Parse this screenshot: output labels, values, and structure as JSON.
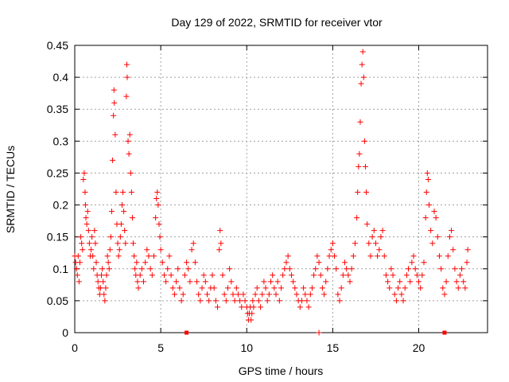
{
  "chart_data": {
    "type": "scatter",
    "title": "Day 129 of 2022, SRMTID for receiver vtor",
    "xlabel": "GPS time / hours",
    "ylabel": "SRMTID / TECUs",
    "xlim": [
      0,
      24
    ],
    "ylim": [
      0,
      0.45
    ],
    "x_ticks": [
      0,
      5,
      10,
      15,
      20
    ],
    "x_tick_labels": [
      "0",
      "5",
      "10",
      "15",
      "20"
    ],
    "y_ticks": [
      0,
      0.05,
      0.1,
      0.15,
      0.2,
      0.25,
      0.3,
      0.35,
      0.4,
      0.45
    ],
    "y_tick_labels": [
      "0",
      "0.05",
      "0.1",
      "0.15",
      "0.2",
      "0.25",
      "0.3",
      "0.35",
      "0.4",
      "0.45"
    ],
    "grid": true,
    "color": "#ff0000",
    "marker": "plus",
    "series": [
      {
        "name": "SRMTID",
        "points": [
          [
            0.0,
            0.12
          ],
          [
            0.05,
            0.11
          ],
          [
            0.1,
            0.1
          ],
          [
            0.15,
            0.09
          ],
          [
            0.2,
            0.12
          ],
          [
            0.25,
            0.08
          ],
          [
            0.3,
            0.11
          ],
          [
            0.35,
            0.15
          ],
          [
            0.4,
            0.14
          ],
          [
            0.45,
            0.13
          ],
          [
            0.5,
            0.24
          ],
          [
            0.55,
            0.25
          ],
          [
            0.6,
            0.22
          ],
          [
            0.62,
            0.2
          ],
          [
            0.65,
            0.18
          ],
          [
            0.7,
            0.17
          ],
          [
            0.75,
            0.19
          ],
          [
            0.8,
            0.16
          ],
          [
            0.85,
            0.14
          ],
          [
            0.9,
            0.12
          ],
          [
            0.95,
            0.13
          ],
          [
            1.0,
            0.15
          ],
          [
            1.05,
            0.12
          ],
          [
            1.1,
            0.1
          ],
          [
            1.15,
            0.16
          ],
          [
            1.2,
            0.14
          ],
          [
            1.25,
            0.11
          ],
          [
            1.3,
            0.09
          ],
          [
            1.35,
            0.08
          ],
          [
            1.4,
            0.07
          ],
          [
            1.45,
            0.06
          ],
          [
            1.5,
            0.07
          ],
          [
            1.55,
            0.09
          ],
          [
            1.6,
            0.1
          ],
          [
            1.65,
            0.08
          ],
          [
            1.7,
            0.06
          ],
          [
            1.75,
            0.05
          ],
          [
            1.8,
            0.07
          ],
          [
            1.85,
            0.09
          ],
          [
            1.9,
            0.12
          ],
          [
            1.95,
            0.11
          ],
          [
            2.0,
            0.1
          ],
          [
            2.05,
            0.13
          ],
          [
            2.1,
            0.15
          ],
          [
            2.15,
            0.19
          ],
          [
            2.2,
            0.27
          ],
          [
            2.25,
            0.34
          ],
          [
            2.28,
            0.38
          ],
          [
            2.3,
            0.36
          ],
          [
            2.35,
            0.31
          ],
          [
            2.4,
            0.22
          ],
          [
            2.45,
            0.17
          ],
          [
            2.5,
            0.14
          ],
          [
            2.55,
            0.12
          ],
          [
            2.6,
            0.13
          ],
          [
            2.65,
            0.15
          ],
          [
            2.7,
            0.17
          ],
          [
            2.75,
            0.2
          ],
          [
            2.8,
            0.22
          ],
          [
            2.85,
            0.19
          ],
          [
            2.9,
            0.16
          ],
          [
            2.95,
            0.14
          ],
          [
            3.0,
            0.37
          ],
          [
            3.03,
            0.42
          ],
          [
            3.05,
            0.4
          ],
          [
            3.1,
            0.3
          ],
          [
            3.15,
            0.28
          ],
          [
            3.2,
            0.31
          ],
          [
            3.25,
            0.25
          ],
          [
            3.3,
            0.22
          ],
          [
            3.35,
            0.18
          ],
          [
            3.4,
            0.14
          ],
          [
            3.45,
            0.12
          ],
          [
            3.5,
            0.1
          ],
          [
            3.55,
            0.09
          ],
          [
            3.6,
            0.11
          ],
          [
            3.65,
            0.08
          ],
          [
            3.7,
            0.07
          ],
          [
            3.8,
            0.09
          ],
          [
            3.9,
            0.1
          ],
          [
            4.0,
            0.08
          ],
          [
            4.1,
            0.11
          ],
          [
            4.2,
            0.13
          ],
          [
            4.3,
            0.12
          ],
          [
            4.4,
            0.1
          ],
          [
            4.5,
            0.09
          ],
          [
            4.6,
            0.12
          ],
          [
            4.7,
            0.18
          ],
          [
            4.75,
            0.21
          ],
          [
            4.8,
            0.22
          ],
          [
            4.85,
            0.2
          ],
          [
            4.9,
            0.17
          ],
          [
            4.95,
            0.15
          ],
          [
            5.0,
            0.13
          ],
          [
            5.1,
            0.11
          ],
          [
            5.2,
            0.09
          ],
          [
            5.3,
            0.08
          ],
          [
            5.4,
            0.1
          ],
          [
            5.5,
            0.12
          ],
          [
            5.6,
            0.09
          ],
          [
            5.7,
            0.07
          ],
          [
            5.8,
            0.06
          ],
          [
            5.9,
            0.08
          ],
          [
            6.0,
            0.1
          ],
          [
            6.1,
            0.07
          ],
          [
            6.2,
            0.05
          ],
          [
            6.3,
            0.06
          ],
          [
            6.4,
            0.09
          ],
          [
            6.5,
            0.11
          ],
          [
            6.6,
            0.1
          ],
          [
            6.7,
            0.08
          ],
          [
            6.8,
            0.13
          ],
          [
            6.9,
            0.14
          ],
          [
            7.0,
            0.11
          ],
          [
            7.1,
            0.08
          ],
          [
            7.2,
            0.06
          ],
          [
            7.3,
            0.05
          ],
          [
            7.4,
            0.07
          ],
          [
            7.5,
            0.09
          ],
          [
            7.6,
            0.08
          ],
          [
            7.7,
            0.06
          ],
          [
            7.8,
            0.05
          ],
          [
            7.9,
            0.07
          ],
          [
            8.0,
            0.09
          ],
          [
            8.1,
            0.07
          ],
          [
            8.2,
            0.05
          ],
          [
            8.3,
            0.04
          ],
          [
            8.4,
            0.13
          ],
          [
            8.45,
            0.16
          ],
          [
            8.5,
            0.14
          ],
          [
            8.6,
            0.09
          ],
          [
            8.7,
            0.06
          ],
          [
            8.8,
            0.05
          ],
          [
            8.9,
            0.07
          ],
          [
            9.0,
            0.1
          ],
          [
            9.1,
            0.08
          ],
          [
            9.2,
            0.06
          ],
          [
            9.3,
            0.05
          ],
          [
            9.4,
            0.07
          ],
          [
            9.5,
            0.06
          ],
          [
            9.6,
            0.05
          ],
          [
            9.7,
            0.04
          ],
          [
            9.8,
            0.06
          ],
          [
            9.9,
            0.05
          ],
          [
            10.0,
            0.04
          ],
          [
            10.05,
            0.03
          ],
          [
            10.1,
            0.02
          ],
          [
            10.15,
            0.03
          ],
          [
            10.2,
            0.04
          ],
          [
            10.25,
            0.02
          ],
          [
            10.3,
            0.03
          ],
          [
            10.35,
            0.05
          ],
          [
            10.4,
            0.04
          ],
          [
            10.5,
            0.06
          ],
          [
            10.6,
            0.07
          ],
          [
            10.7,
            0.05
          ],
          [
            10.8,
            0.04
          ],
          [
            10.9,
            0.06
          ],
          [
            11.0,
            0.08
          ],
          [
            11.1,
            0.07
          ],
          [
            11.2,
            0.05
          ],
          [
            11.3,
            0.06
          ],
          [
            11.4,
            0.08
          ],
          [
            11.5,
            0.09
          ],
          [
            11.6,
            0.07
          ],
          [
            11.7,
            0.06
          ],
          [
            11.8,
            0.08
          ],
          [
            11.9,
            0.05
          ],
          [
            12.0,
            0.07
          ],
          [
            12.1,
            0.09
          ],
          [
            12.2,
            0.1
          ],
          [
            12.3,
            0.11
          ],
          [
            12.4,
            0.12
          ],
          [
            12.5,
            0.1
          ],
          [
            12.6,
            0.09
          ],
          [
            12.7,
            0.08
          ],
          [
            12.8,
            0.07
          ],
          [
            12.9,
            0.06
          ],
          [
            13.0,
            0.05
          ],
          [
            13.1,
            0.04
          ],
          [
            13.2,
            0.05
          ],
          [
            13.3,
            0.07
          ],
          [
            13.4,
            0.06
          ],
          [
            13.5,
            0.05
          ],
          [
            13.6,
            0.04
          ],
          [
            13.7,
            0.06
          ],
          [
            13.8,
            0.07
          ],
          [
            13.9,
            0.09
          ],
          [
            14.0,
            0.1
          ],
          [
            14.1,
            0.12
          ],
          [
            14.2,
            0.11
          ],
          [
            14.3,
            0.09
          ],
          [
            14.4,
            0.07
          ],
          [
            14.5,
            0.06
          ],
          [
            14.6,
            0.08
          ],
          [
            14.7,
            0.1
          ],
          [
            14.8,
            0.12
          ],
          [
            14.9,
            0.13
          ],
          [
            15.0,
            0.14
          ],
          [
            15.1,
            0.12
          ],
          [
            15.2,
            0.1
          ],
          [
            15.3,
            0.06
          ],
          [
            15.4,
            0.05
          ],
          [
            15.5,
            0.07
          ],
          [
            15.6,
            0.09
          ],
          [
            15.7,
            0.11
          ],
          [
            15.8,
            0.1
          ],
          [
            15.9,
            0.09
          ],
          [
            16.0,
            0.08
          ],
          [
            16.1,
            0.1
          ],
          [
            16.2,
            0.12
          ],
          [
            16.3,
            0.14
          ],
          [
            16.4,
            0.18
          ],
          [
            16.45,
            0.22
          ],
          [
            16.5,
            0.26
          ],
          [
            16.55,
            0.28
          ],
          [
            16.6,
            0.33
          ],
          [
            16.65,
            0.39
          ],
          [
            16.7,
            0.42
          ],
          [
            16.75,
            0.44
          ],
          [
            16.8,
            0.4
          ],
          [
            16.85,
            0.3
          ],
          [
            16.9,
            0.26
          ],
          [
            16.95,
            0.22
          ],
          [
            17.0,
            0.17
          ],
          [
            17.1,
            0.14
          ],
          [
            17.2,
            0.12
          ],
          [
            17.3,
            0.15
          ],
          [
            17.4,
            0.16
          ],
          [
            17.5,
            0.14
          ],
          [
            17.6,
            0.12
          ],
          [
            17.7,
            0.13
          ],
          [
            17.8,
            0.15
          ],
          [
            17.9,
            0.16
          ],
          [
            18.0,
            0.12
          ],
          [
            18.1,
            0.09
          ],
          [
            18.2,
            0.08
          ],
          [
            18.3,
            0.07
          ],
          [
            18.4,
            0.1
          ],
          [
            18.5,
            0.09
          ],
          [
            18.6,
            0.06
          ],
          [
            18.7,
            0.05
          ],
          [
            18.8,
            0.07
          ],
          [
            18.9,
            0.08
          ],
          [
            19.0,
            0.06
          ],
          [
            19.1,
            0.05
          ],
          [
            19.2,
            0.07
          ],
          [
            19.3,
            0.09
          ],
          [
            19.4,
            0.1
          ],
          [
            19.5,
            0.08
          ],
          [
            19.6,
            0.11
          ],
          [
            19.7,
            0.12
          ],
          [
            19.8,
            0.1
          ],
          [
            19.9,
            0.09
          ],
          [
            20.0,
            0.08
          ],
          [
            20.1,
            0.07
          ],
          [
            20.2,
            0.09
          ],
          [
            20.3,
            0.11
          ],
          [
            20.4,
            0.18
          ],
          [
            20.45,
            0.22
          ],
          [
            20.5,
            0.25
          ],
          [
            20.55,
            0.24
          ],
          [
            20.6,
            0.2
          ],
          [
            20.7,
            0.16
          ],
          [
            20.8,
            0.14
          ],
          [
            20.9,
            0.19
          ],
          [
            21.0,
            0.18
          ],
          [
            21.1,
            0.15
          ],
          [
            21.2,
            0.12
          ],
          [
            21.3,
            0.1
          ],
          [
            21.4,
            0.07
          ],
          [
            21.5,
            0.06
          ],
          [
            21.6,
            0.08
          ],
          [
            21.7,
            0.12
          ],
          [
            21.8,
            0.15
          ],
          [
            21.9,
            0.16
          ],
          [
            22.0,
            0.13
          ],
          [
            22.1,
            0.1
          ],
          [
            22.2,
            0.08
          ],
          [
            22.3,
            0.07
          ],
          [
            22.4,
            0.09
          ],
          [
            22.5,
            0.1
          ],
          [
            22.6,
            0.08
          ],
          [
            22.7,
            0.07
          ],
          [
            22.8,
            0.11
          ],
          [
            22.85,
            0.13
          ]
        ]
      }
    ],
    "flags": [
      [
        6.5,
        0
      ],
      [
        21.5,
        0
      ]
    ],
    "outlier_zero": [
      [
        14.2,
        0
      ]
    ]
  }
}
